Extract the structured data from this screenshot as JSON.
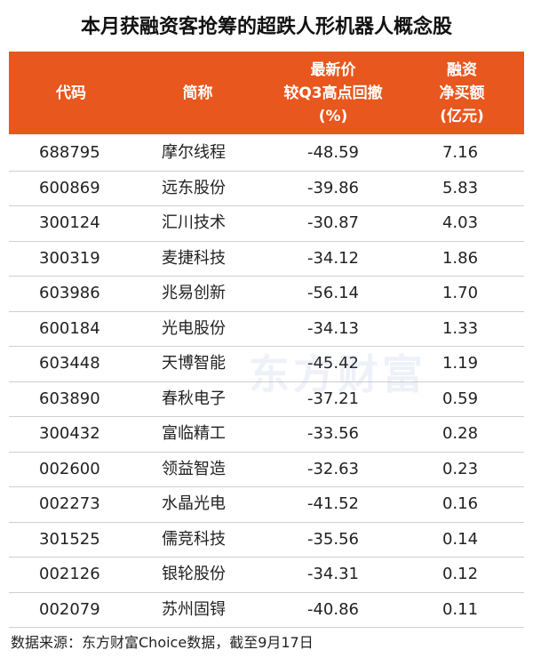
{
  "title": "本月获融资客抢筹的超跌人形机器人概念股",
  "table": {
    "header": [
      [
        "代码"
      ],
      [
        "简称"
      ],
      [
        "最新价",
        "较Q3高点回撤",
        "(%)"
      ],
      [
        "融资",
        "净买额",
        "(亿元)"
      ]
    ],
    "rows": [
      [
        "688795",
        "摩尔线程",
        "-48.59",
        "7.16"
      ],
      [
        "600869",
        "远东股份",
        "-39.86",
        "5.83"
      ],
      [
        "300124",
        "汇川技术",
        "-30.87",
        "4.03"
      ],
      [
        "300319",
        "麦捷科技",
        "-34.12",
        "1.86"
      ],
      [
        "603986",
        "兆易创新",
        "-56.14",
        "1.70"
      ],
      [
        "600184",
        "光电股份",
        "-34.13",
        "1.33"
      ],
      [
        "603448",
        "天博智能",
        "-45.42",
        "1.19"
      ],
      [
        "603890",
        "春秋电子",
        "-37.21",
        "0.59"
      ],
      [
        "300432",
        "富临精工",
        "-33.56",
        "0.28"
      ],
      [
        "002600",
        "领益智造",
        "-32.63",
        "0.23"
      ],
      [
        "002273",
        "水晶光电",
        "-41.52",
        "0.16"
      ],
      [
        "301525",
        "儒竞科技",
        "-35.56",
        "0.14"
      ],
      [
        "002126",
        "银轮股份",
        "-34.31",
        "0.12"
      ],
      [
        "002079",
        "苏州固锝",
        "-40.86",
        "0.11"
      ]
    ]
  },
  "watermark": "东方财富",
  "source": "数据来源：东方财富Choice数据，截至9月17日"
}
